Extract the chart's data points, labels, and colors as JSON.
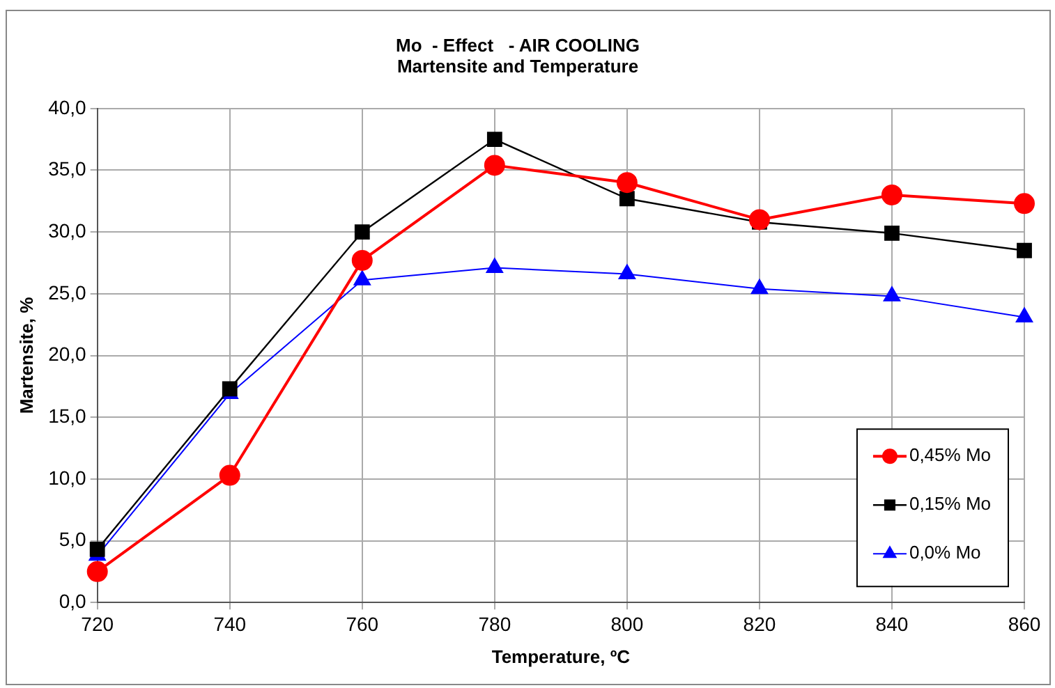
{
  "chart_data": {
    "type": "line",
    "title": [
      "Mo  - Effect   - AIR COOLING",
      "Martensite and Temperature"
    ],
    "xlabel": "Temperature, ºC",
    "ylabel": "Martensite, %",
    "x": [
      720,
      740,
      760,
      780,
      800,
      820,
      840,
      860
    ],
    "series": [
      {
        "name": "0,45% Mo",
        "color": "#ff0000",
        "marker": "circle",
        "values": [
          2.5,
          10.3,
          27.7,
          35.4,
          34.0,
          31.0,
          33.0,
          32.3
        ]
      },
      {
        "name": "0,15% Mo",
        "color": "#000000",
        "marker": "square",
        "values": [
          4.3,
          17.3,
          30.0,
          37.5,
          32.7,
          30.8,
          29.9,
          28.5
        ]
      },
      {
        "name": "0,0% Mo",
        "color": "#0000ff",
        "marker": "triangle",
        "values": [
          3.8,
          16.9,
          26.1,
          27.1,
          26.6,
          25.4,
          24.8,
          23.1
        ]
      }
    ],
    "xlim": [
      720,
      860
    ],
    "xticks": [
      720,
      740,
      760,
      780,
      800,
      820,
      840,
      860
    ],
    "ylim": [
      0,
      40
    ],
    "yticks": [
      {
        "value": 0,
        "label": "0,0"
      },
      {
        "value": 5,
        "label": "5,0"
      },
      {
        "value": 10,
        "label": "10,0"
      },
      {
        "value": 15,
        "label": "15,0"
      },
      {
        "value": 20,
        "label": "20,0"
      },
      {
        "value": 25,
        "label": "25,0"
      },
      {
        "value": 30,
        "label": "30,0"
      },
      {
        "value": 35,
        "label": "35,0"
      },
      {
        "value": 40,
        "label": "40,0"
      }
    ],
    "grid": true,
    "legend": "bottom right",
    "line_style": "solid"
  }
}
